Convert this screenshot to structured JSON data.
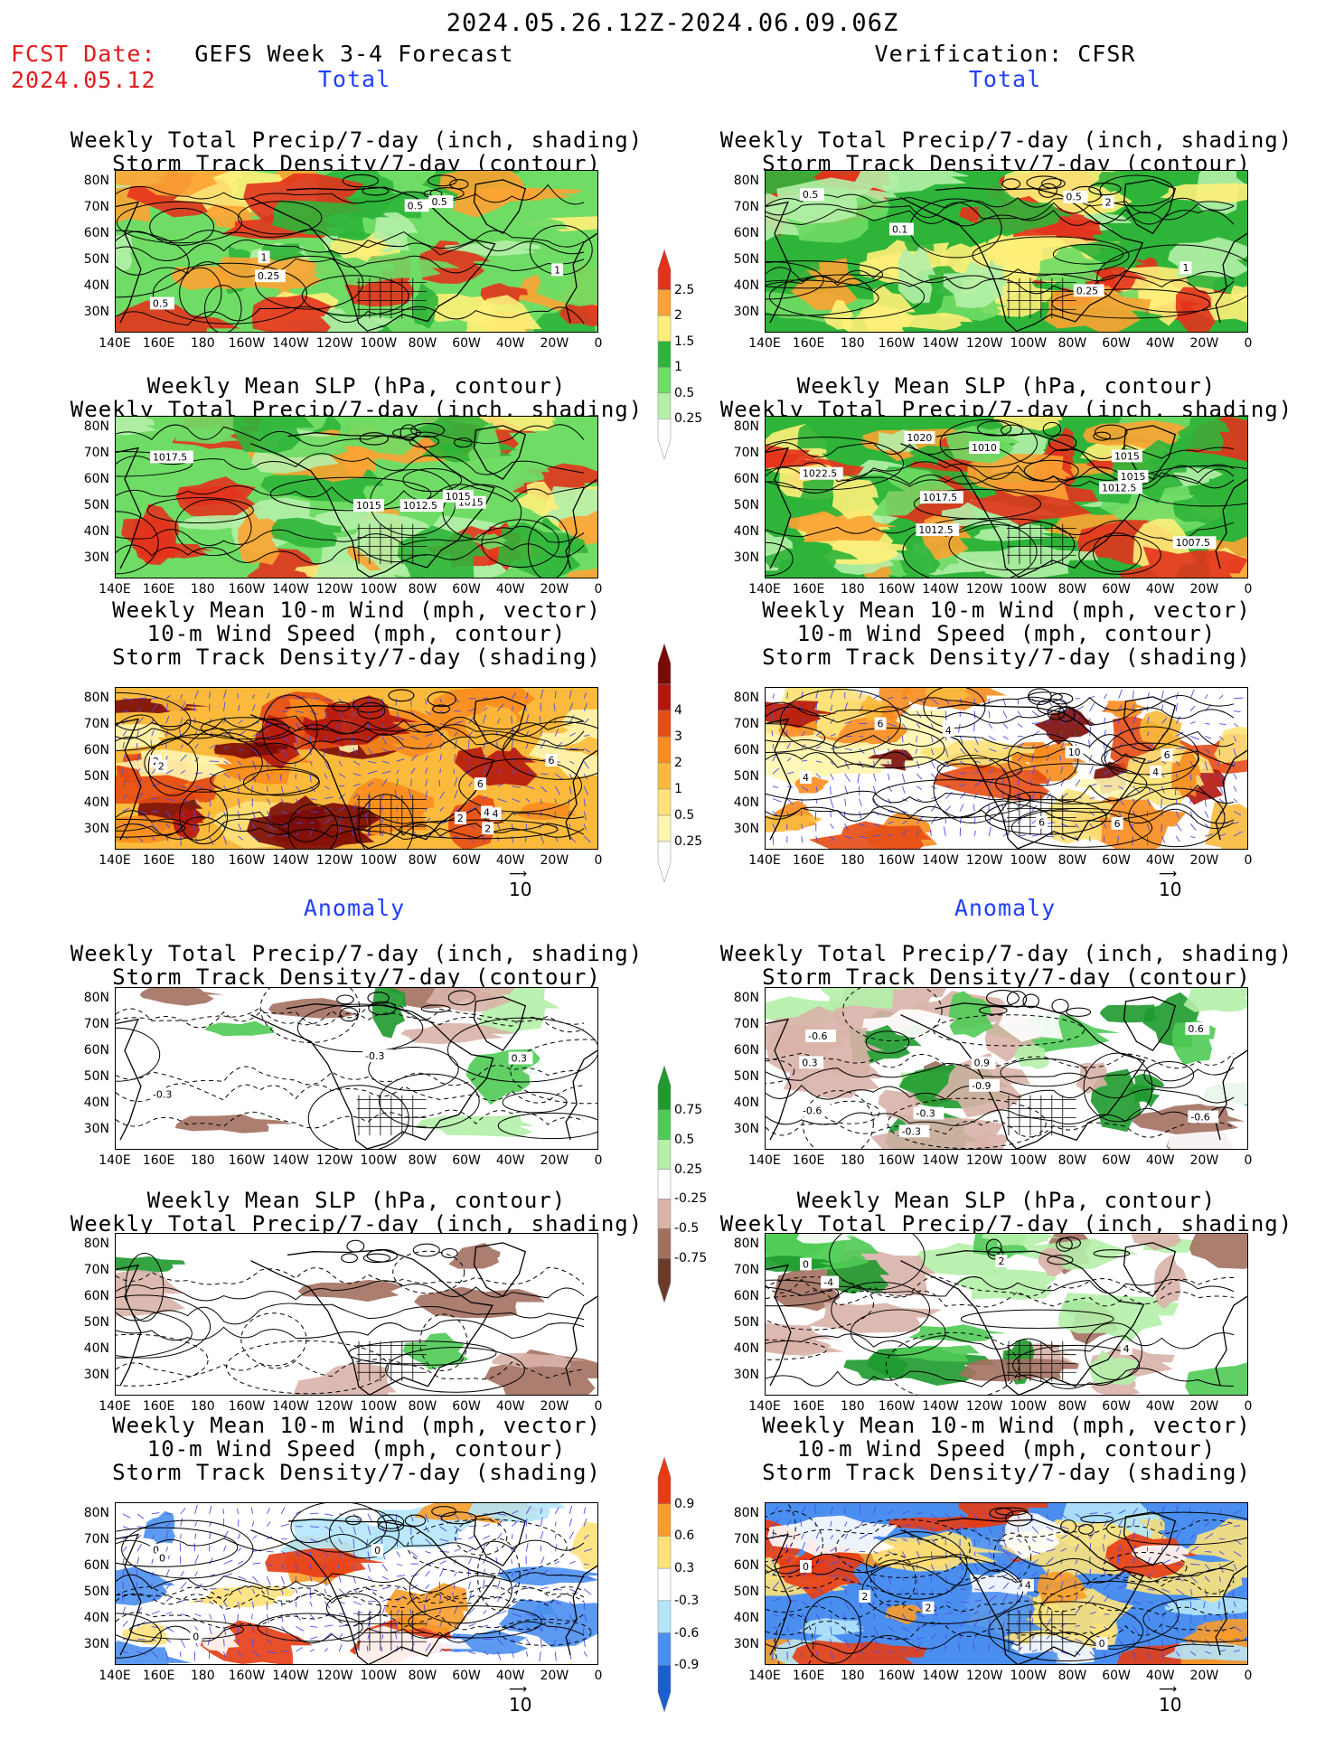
{
  "header": {
    "period": "2024.05.26.12Z-2024.06.09.06Z",
    "fcst_label": "FCST Date:",
    "fcst_date": "2024.05.12",
    "left_title": "GEFS Week 3-4 Forecast",
    "right_title": "Verification: CFSR"
  },
  "sections": {
    "total": "Total",
    "anomaly": "Anomaly"
  },
  "panel_titles": {
    "precip_std": [
      "Weekly Total Precip/7-day (inch, shading)",
      "Storm Track Density/7-day (contour)"
    ],
    "slp_precip": [
      "Weekly Mean SLP (hPa, contour)",
      "Weekly Total Precip/7-day (inch, shading)"
    ],
    "wind_std": [
      "Weekly Mean 10-m Wind (mph, vector)",
      "10-m Wind Speed (mph, contour)",
      "Storm Track Density/7-day (shading)"
    ]
  },
  "axes": {
    "lat_labels": [
      "80N",
      "70N",
      "60N",
      "50N",
      "40N",
      "30N"
    ],
    "lon_labels": [
      "140E",
      "160E",
      "180",
      "160W",
      "140W",
      "120W",
      "100W",
      "80W",
      "60W",
      "40W",
      "20W",
      "0"
    ]
  },
  "vector_ref": "10",
  "colorbars": {
    "precip_total": [
      "0.25",
      "0.5",
      "1",
      "1.5",
      "2",
      "2.5"
    ],
    "std_total": [
      "0.25",
      "0.5",
      "1",
      "2",
      "3",
      "4"
    ],
    "precip_anom": [
      "-0.75",
      "-0.5",
      "-0.25",
      "0.25",
      "0.5",
      "0.75"
    ],
    "std_anom": [
      "-0.9",
      "-0.6",
      "-0.3",
      "0.3",
      "0.6",
      "0.9"
    ]
  },
  "contour_labels": {
    "fc_precip": [
      "0.5",
      "1",
      "0.5",
      "0.5",
      "0.25",
      "1"
    ],
    "vf_precip": [
      "0.5",
      "2",
      "0.1",
      "0.25",
      "1",
      "0.5"
    ],
    "fc_slp": [
      "1017.5",
      "1015",
      "1015",
      "1015",
      "1012.5"
    ],
    "vf_slp": [
      "1022.5",
      "1020",
      "1012.5",
      "1015",
      "1017.5",
      "1010",
      "1007.5",
      "1015",
      "1012.5"
    ],
    "fc_wind": [
      "2",
      "2",
      "2",
      "4",
      "6",
      "6",
      "2",
      "4"
    ],
    "vf_wind": [
      "4",
      "6",
      "4",
      "4",
      "10",
      "6",
      "6",
      "6"
    ],
    "fc_pa": [
      "-0.3",
      "-0.3",
      "0.3"
    ],
    "vf_pa": [
      "-0.6",
      "-0.3",
      "-0.9",
      "-0.6",
      "-0.6",
      "0.6",
      "-0.3",
      "0.3",
      "0.9"
    ],
    "fc_wa": [
      "0",
      "0",
      "0",
      "0"
    ],
    "vf_wa": [
      "0",
      "2",
      "4",
      "2",
      "0"
    ],
    "vf_sa": [
      "0",
      "4",
      "2",
      "-4"
    ]
  },
  "colors": {
    "precip": [
      "#ffffff",
      "#b4f0a8",
      "#6fdc65",
      "#2fb43a",
      "#fff07a",
      "#fda333",
      "#e3331c"
    ],
    "std": [
      "#ffffff",
      "#fff6b0",
      "#fde27a",
      "#fbba3c",
      "#f88c1e",
      "#e64b14",
      "#b4160c",
      "#7a0a06"
    ],
    "precip_anom": [
      "#6b3a2a",
      "#a37060",
      "#d9b3a8",
      "#ffffff",
      "#b4f0a8",
      "#4fcb55",
      "#1e9a2e"
    ],
    "std_anom": [
      "#1a5fd0",
      "#4a8ff0",
      "#b4e6fa",
      "#ffffff",
      "#fde27a",
      "#f89c2a",
      "#e63c14"
    ]
  }
}
